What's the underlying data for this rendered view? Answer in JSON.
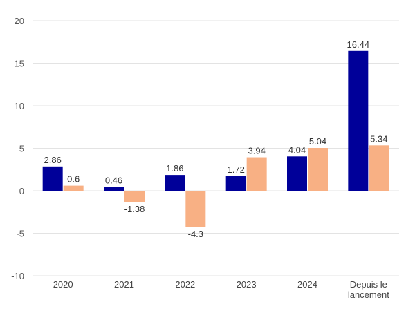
{
  "chart_data": {
    "type": "bar",
    "title": "",
    "xlabel": "",
    "ylabel": "",
    "categories": [
      [
        "2020"
      ],
      [
        "2021"
      ],
      [
        "2022"
      ],
      [
        "2023"
      ],
      [
        "2024"
      ],
      [
        "Depuis le",
        "lancement"
      ]
    ],
    "series": [
      {
        "name": "Series 1",
        "color": "#000099",
        "values": [
          2.86,
          0.46,
          1.86,
          1.72,
          4.04,
          16.44
        ],
        "labels": [
          "2.86",
          "0.46",
          "1.86",
          "1.72",
          "4.04",
          "16.44"
        ]
      },
      {
        "name": "Series 2",
        "color": "#F8B084",
        "values": [
          0.6,
          -1.38,
          -4.3,
          3.94,
          5.04,
          5.34
        ],
        "labels": [
          "0.6",
          "-1.38",
          "-4.3",
          "3.94",
          "5.04",
          "5.34"
        ]
      }
    ],
    "ylim": [
      -10,
      20
    ],
    "yticks": [
      20,
      15,
      10,
      5,
      0,
      -5,
      -10
    ],
    "ytick_labels": [
      "20",
      "15",
      "10",
      "5",
      "0",
      "-5",
      "-10"
    ],
    "grid": true,
    "legend": "none",
    "gridline_color": "#e3e3e3"
  }
}
